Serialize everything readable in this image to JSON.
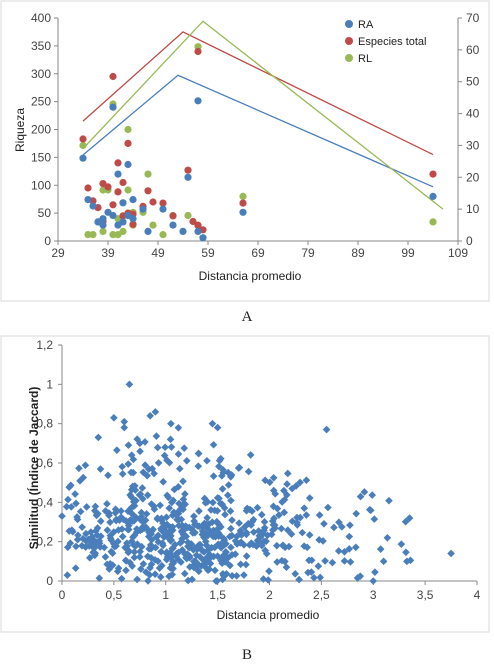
{
  "colors": {
    "RA": "#4a7ebb",
    "especies": "#be4b48",
    "RL": "#98b954",
    "jaccard": "#4a7ebb",
    "frame": "#d9d9d9"
  },
  "chart_data": [
    {
      "id": "A",
      "type": "scatter",
      "panel_label": "A",
      "xlabel": "Distancia promedio",
      "ylabel": "Riqueza",
      "xlim": [
        29,
        109
      ],
      "ylim": [
        0,
        400
      ],
      "y2lim": [
        0,
        70
      ],
      "xticks": [
        "29",
        "39",
        "49",
        "59",
        "69",
        "79",
        "89",
        "99",
        "109"
      ],
      "yticks": [
        "0",
        "50",
        "100",
        "150",
        "200",
        "250",
        "300",
        "350",
        "400"
      ],
      "y2ticks": [
        "0",
        "10",
        "20",
        "30",
        "40",
        "50",
        "60",
        "70"
      ],
      "legend_position": "top-right",
      "grid": false,
      "series": [
        {
          "name": "RA",
          "color_key": "RA",
          "axis": "right",
          "points": [
            [
              34,
              26
            ],
            [
              35,
              13
            ],
            [
              36,
              11
            ],
            [
              37,
              6
            ],
            [
              38,
              5
            ],
            [
              38,
              7
            ],
            [
              39,
              9
            ],
            [
              40,
              42
            ],
            [
              40,
              8
            ],
            [
              41,
              21
            ],
            [
              41,
              5
            ],
            [
              42,
              12
            ],
            [
              42,
              6
            ],
            [
              43,
              24
            ],
            [
              43,
              8
            ],
            [
              44,
              13
            ],
            [
              44,
              7
            ],
            [
              46,
              10
            ],
            [
              47,
              3
            ],
            [
              50,
              10
            ],
            [
              52,
              5
            ],
            [
              54,
              3
            ],
            [
              55,
              20
            ],
            [
              57,
              44
            ],
            [
              57,
              3
            ],
            [
              58,
              1
            ],
            [
              66,
              9
            ],
            [
              104,
              14
            ]
          ],
          "trend": [
            [
              34,
              27
            ],
            [
              53,
              52
            ],
            [
              104,
              17
            ]
          ]
        },
        {
          "name": "Especies total",
          "color_key": "especies",
          "axis": "left",
          "points": [
            [
              34,
              183
            ],
            [
              35,
              95
            ],
            [
              36,
              72
            ],
            [
              37,
              60
            ],
            [
              38,
              103
            ],
            [
              38,
              35
            ],
            [
              39,
              97
            ],
            [
              40,
              295
            ],
            [
              40,
              65
            ],
            [
              41,
              140
            ],
            [
              41,
              88
            ],
            [
              42,
              105
            ],
            [
              42,
              45
            ],
            [
              43,
              175
            ],
            [
              43,
              50
            ],
            [
              44,
              48
            ],
            [
              44,
              30
            ],
            [
              46,
              62
            ],
            [
              47,
              90
            ],
            [
              48,
              70
            ],
            [
              50,
              68
            ],
            [
              52,
              45
            ],
            [
              55,
              127
            ],
            [
              56,
              35
            ],
            [
              57,
              340
            ],
            [
              57,
              28
            ],
            [
              58,
              20
            ],
            [
              66,
              68
            ],
            [
              104,
              120
            ]
          ],
          "trend": [
            [
              34,
              215
            ],
            [
              54,
              375
            ],
            [
              104,
              155
            ]
          ]
        },
        {
          "name": "RL",
          "color_key": "RL",
          "axis": "right",
          "points": [
            [
              34,
              30
            ],
            [
              35,
              2
            ],
            [
              36,
              2
            ],
            [
              37,
              6
            ],
            [
              38,
              3
            ],
            [
              38,
              16
            ],
            [
              39,
              16
            ],
            [
              40,
              43
            ],
            [
              40,
              2
            ],
            [
              41,
              2
            ],
            [
              41,
              7
            ],
            [
              42,
              12
            ],
            [
              42,
              3
            ],
            [
              43,
              35
            ],
            [
              43,
              16
            ],
            [
              44,
              9
            ],
            [
              44,
              5
            ],
            [
              46,
              9
            ],
            [
              47,
              21
            ],
            [
              48,
              5
            ],
            [
              50,
              2
            ],
            [
              52,
              8
            ],
            [
              55,
              8
            ],
            [
              57,
              61
            ],
            [
              57,
              5
            ],
            [
              58,
              1
            ],
            [
              66,
              14
            ],
            [
              104,
              6
            ]
          ],
          "trend": [
            [
              34,
              29
            ],
            [
              58,
              69
            ],
            [
              106,
              10
            ]
          ]
        }
      ]
    },
    {
      "id": "B",
      "type": "scatter",
      "panel_label": "B",
      "xlabel": "Distancia promedio",
      "ylabel": "Similitud (Índice de Jaccard)",
      "xlim": [
        0,
        4
      ],
      "ylim": [
        0,
        1.2
      ],
      "xticks": [
        "0",
        "0,5",
        "1",
        "1,5",
        "2",
        "2,5",
        "3",
        "3,5",
        "4"
      ],
      "yticks": [
        "0",
        "0,2",
        "0,4",
        "0,6",
        "0,8",
        "1",
        "1,2"
      ],
      "grid": false,
      "n_points": 650,
      "summary": "dense cloud of Jaccard similarity vs mean distance, concentrated at x 0.3-2.0, y 0.1-0.4, max 1.0 at x≈0.65",
      "highlight_points": [
        [
          0.65,
          1.0
        ],
        [
          0.5,
          0.83
        ],
        [
          0.6,
          0.81
        ],
        [
          0.6,
          0.78
        ],
        [
          0.85,
          0.84
        ],
        [
          0.9,
          0.86
        ],
        [
          1.05,
          0.8
        ],
        [
          1.45,
          0.8
        ],
        [
          1.5,
          0.78
        ],
        [
          2.55,
          0.77
        ],
        [
          0.35,
          0.73
        ],
        [
          0.75,
          0.7
        ],
        [
          0.0,
          0.33
        ],
        [
          3.75,
          0.14
        ],
        [
          3.0,
          0.0
        ],
        [
          3.1,
          0.1
        ],
        [
          3.35,
          0.32
        ]
      ]
    }
  ]
}
